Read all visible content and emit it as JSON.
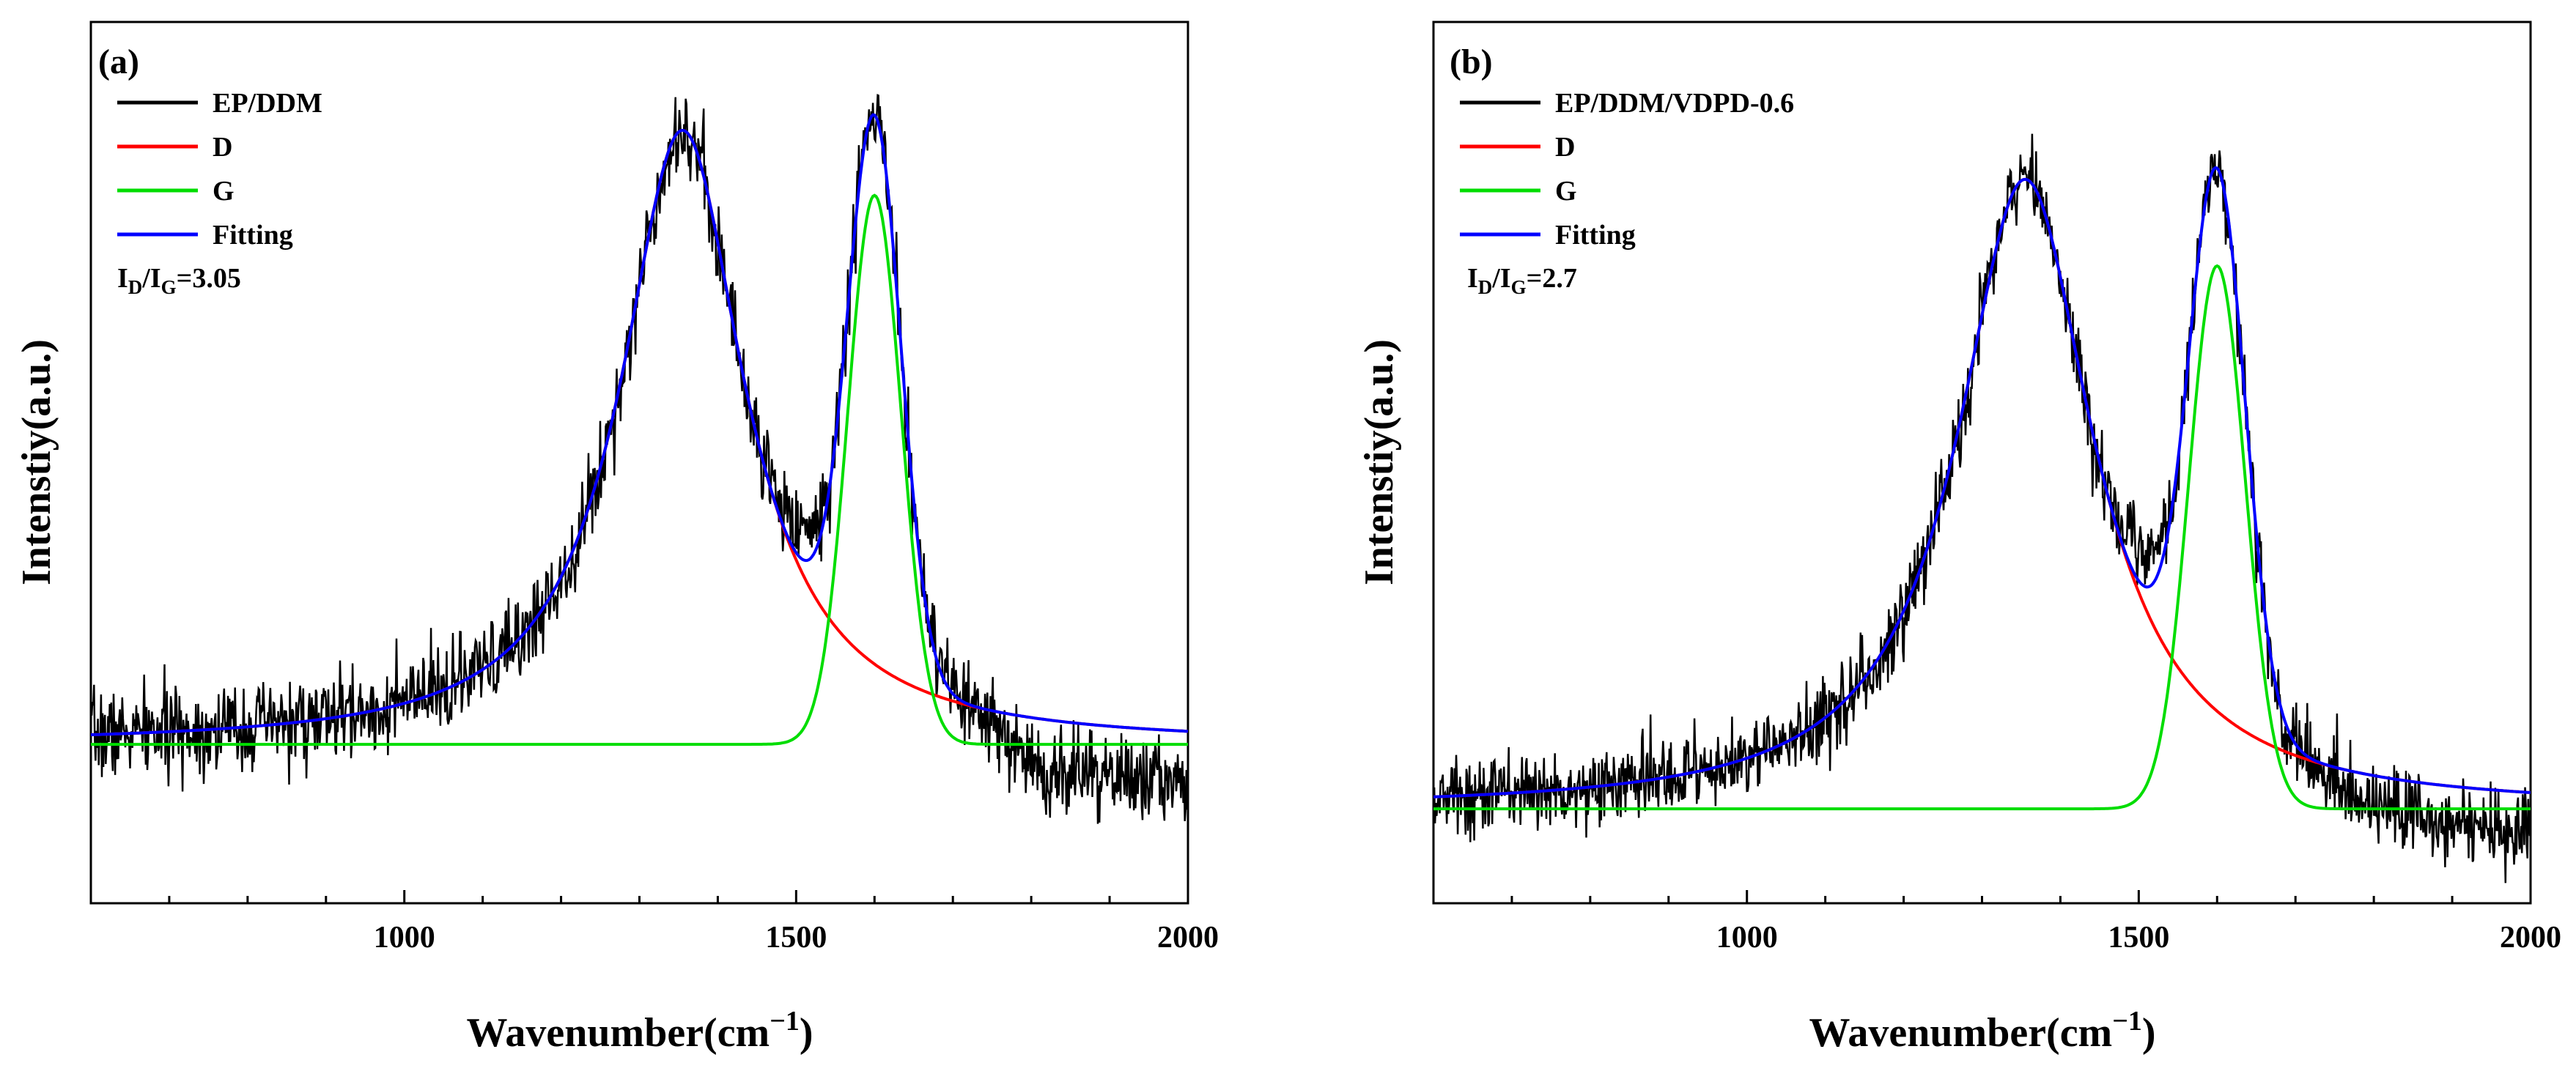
{
  "chart_data": [
    {
      "type": "line",
      "panel_label": "(a)",
      "xlabel": "Wavenumber(cm",
      "xlabel_sup": "−1",
      "xlabel_close": ")",
      "ylabel": "Intenstiy(a.u.)",
      "xlim": [
        600,
        2000
      ],
      "ylim": [
        -0.22,
        1.0
      ],
      "xticks": [
        1000,
        1500,
        2000
      ],
      "xtick_labels": [
        "1000",
        "1500",
        "2000"
      ],
      "legend_position": "top-left",
      "legend": [
        {
          "label": "EP/DDM",
          "color": "#000000"
        },
        {
          "label": "D",
          "color": "#ff0000"
        },
        {
          "label": "G",
          "color": "#00dd00"
        },
        {
          "label": "Fitting",
          "color": "#0000ff"
        }
      ],
      "annotation": {
        "i": "I",
        "d_sub": "D",
        "slash": "/",
        "i2": "I",
        "g_sub": "G",
        "value": "=3.05"
      },
      "series": [
        {
          "name": "D",
          "model": "lorentzian",
          "center": 1355,
          "height": 0.85,
          "hwhm": 95
        },
        {
          "name": "G",
          "model": "gaussian",
          "center": 1600,
          "height": 0.76,
          "sigma": 34
        },
        {
          "name": "Fitting",
          "model": "sum"
        },
        {
          "name": "EP/DDM",
          "model": "noisy",
          "noise": 0.03,
          "seed": 7,
          "baseline_drift": -0.07
        }
      ]
    },
    {
      "type": "line",
      "panel_label": "(b)",
      "xlabel": "Wavenumber(cm",
      "xlabel_sup": "−1",
      "xlabel_close": ")",
      "ylabel": "Intenstiy(a.u.)",
      "xlim": [
        600,
        2000
      ],
      "ylim": [
        -0.12,
        1.0
      ],
      "xticks": [
        1000,
        1500,
        2000
      ],
      "xtick_labels": [
        "1000",
        "1500",
        "2000"
      ],
      "legend_position": "top-left",
      "legend": [
        {
          "label": "EP/DDM/VDPD-0.6",
          "color": "#000000"
        },
        {
          "label": "D",
          "color": "#ff0000"
        },
        {
          "label": "G",
          "color": "#00dd00"
        },
        {
          "label": "Fitting",
          "color": "#0000ff"
        }
      ],
      "annotation": {
        "i": "I",
        "d_sub": "D",
        "slash": "/",
        "i2": "I",
        "g_sub": "G",
        "value": "=2.7"
      },
      "series": [
        {
          "name": "D",
          "model": "lorentzian",
          "center": 1355,
          "height": 0.8,
          "hwhm": 105
        },
        {
          "name": "G",
          "model": "gaussian",
          "center": 1600,
          "height": 0.69,
          "sigma": 36
        },
        {
          "name": "Fitting",
          "model": "sum"
        },
        {
          "name": "EP/DDM/VDPD-0.6",
          "model": "noisy",
          "noise": 0.025,
          "seed": 13,
          "baseline_drift": -0.045
        }
      ]
    }
  ]
}
